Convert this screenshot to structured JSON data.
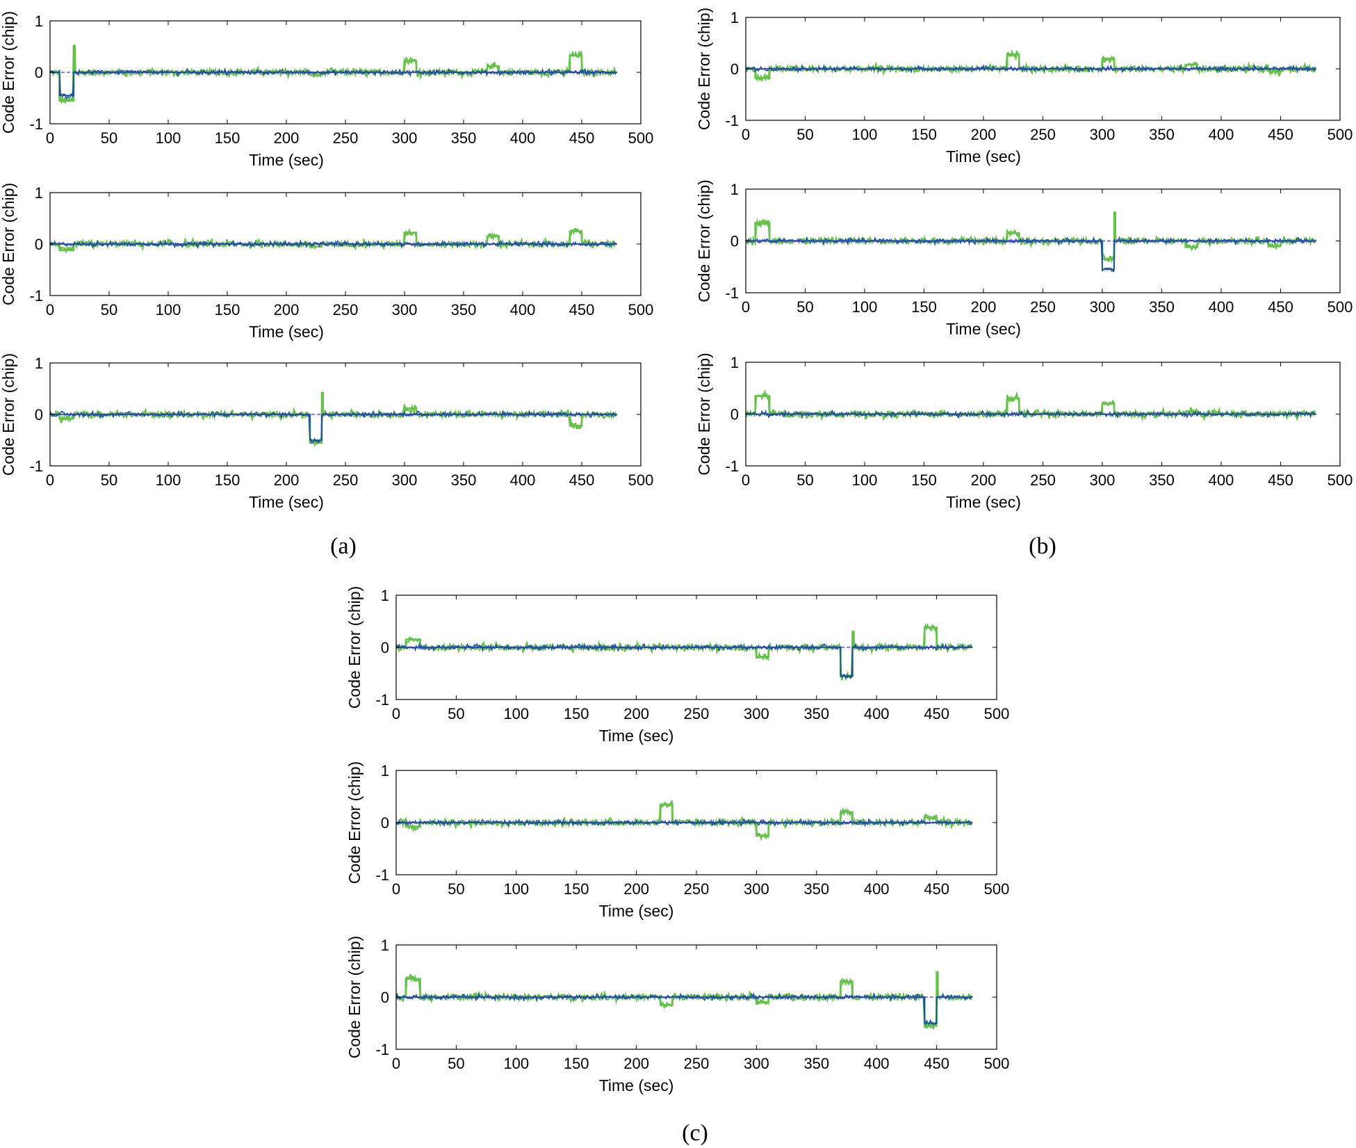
{
  "figure": {
    "captions": [
      "(a)",
      "(b)",
      "(c)"
    ],
    "colors": {
      "series_a": "#65c14a",
      "series_b": "#1e5496",
      "series_ref": "#3a3ad8"
    }
  },
  "chart_data": [
    {
      "panel": "(a)",
      "subplot": 1,
      "type": "line",
      "xlabel": "Time (sec)",
      "ylabel": "Code Error (chip)",
      "xlim": [
        0,
        500
      ],
      "ylim": [
        -1,
        1
      ],
      "xticks": [
        0,
        50,
        100,
        150,
        200,
        250,
        300,
        350,
        400,
        450,
        500
      ],
      "yticks": [
        -1,
        0,
        1
      ],
      "series": [
        {
          "name": "Code error (green)",
          "color": "#65c14a",
          "steps": [
            [
              0,
              0
            ],
            [
              8,
              -0.55
            ],
            [
              20,
              0.5
            ],
            [
              21,
              0
            ],
            [
              220,
              -0.05
            ],
            [
              230,
              0
            ],
            [
              300,
              0.22
            ],
            [
              310,
              0
            ],
            [
              370,
              0.12
            ],
            [
              380,
              0
            ],
            [
              440,
              0.33
            ],
            [
              450,
              0
            ],
            [
              480,
              0
            ]
          ]
        },
        {
          "name": "Code error (blue)",
          "color": "#1e5496",
          "steps": [
            [
              0,
              0
            ],
            [
              8,
              -0.45
            ],
            [
              20,
              0
            ],
            [
              480,
              0
            ]
          ]
        },
        {
          "name": "Zero reference",
          "color": "#3a3ad8",
          "steps": [
            [
              0,
              0
            ],
            [
              480,
              0
            ]
          ]
        }
      ]
    },
    {
      "panel": "(a)",
      "subplot": 2,
      "type": "line",
      "xlabel": "Time (sec)",
      "ylabel": "Code Error (chip)",
      "xlim": [
        0,
        500
      ],
      "ylim": [
        -1,
        1
      ],
      "xticks": [
        0,
        50,
        100,
        150,
        200,
        250,
        300,
        350,
        400,
        450,
        500
      ],
      "yticks": [
        -1,
        0,
        1
      ],
      "series": [
        {
          "name": "Code error (green)",
          "color": "#65c14a",
          "steps": [
            [
              0,
              0
            ],
            [
              8,
              -0.12
            ],
            [
              20,
              0
            ],
            [
              220,
              -0.05
            ],
            [
              230,
              0
            ],
            [
              300,
              0.22
            ],
            [
              310,
              0
            ],
            [
              370,
              0.15
            ],
            [
              380,
              0
            ],
            [
              440,
              0.25
            ],
            [
              450,
              0
            ],
            [
              480,
              0
            ]
          ]
        },
        {
          "name": "Code error (blue)",
          "color": "#1e5496",
          "steps": [
            [
              0,
              0
            ],
            [
              480,
              0
            ]
          ]
        },
        {
          "name": "Zero reference",
          "color": "#3a3ad8",
          "steps": [
            [
              0,
              0
            ],
            [
              480,
              0
            ]
          ]
        }
      ]
    },
    {
      "panel": "(a)",
      "subplot": 3,
      "type": "line",
      "xlabel": "Time (sec)",
      "ylabel": "Code Error (chip)",
      "xlim": [
        0,
        500
      ],
      "ylim": [
        -1,
        1
      ],
      "xticks": [
        0,
        50,
        100,
        150,
        200,
        250,
        300,
        350,
        400,
        450,
        500
      ],
      "yticks": [
        -1,
        0,
        1
      ],
      "series": [
        {
          "name": "Code error (green)",
          "color": "#65c14a",
          "steps": [
            [
              0,
              0
            ],
            [
              8,
              -0.08
            ],
            [
              20,
              0
            ],
            [
              220,
              -0.55
            ],
            [
              230,
              0.42
            ],
            [
              231,
              0
            ],
            [
              300,
              0.12
            ],
            [
              310,
              0
            ],
            [
              440,
              -0.22
            ],
            [
              450,
              0
            ],
            [
              480,
              0
            ]
          ]
        },
        {
          "name": "Code error (blue)",
          "color": "#1e5496",
          "steps": [
            [
              0,
              0
            ],
            [
              220,
              -0.5
            ],
            [
              230,
              0
            ],
            [
              480,
              0
            ]
          ]
        },
        {
          "name": "Zero reference",
          "color": "#3a3ad8",
          "steps": [
            [
              0,
              0
            ],
            [
              480,
              0
            ]
          ]
        }
      ]
    },
    {
      "panel": "(b)",
      "subplot": 1,
      "type": "line",
      "xlabel": "Time (sec)",
      "ylabel": "Code Error (chip)",
      "xlim": [
        0,
        500
      ],
      "ylim": [
        -1,
        1
      ],
      "xticks": [
        0,
        50,
        100,
        150,
        200,
        250,
        300,
        350,
        400,
        450,
        500
      ],
      "yticks": [
        -1,
        0,
        1
      ],
      "series": [
        {
          "name": "Code error (green)",
          "color": "#65c14a",
          "steps": [
            [
              0,
              0
            ],
            [
              8,
              -0.18
            ],
            [
              20,
              0
            ],
            [
              220,
              0.28
            ],
            [
              230,
              0
            ],
            [
              300,
              0.2
            ],
            [
              310,
              0
            ],
            [
              370,
              0.08
            ],
            [
              380,
              0
            ],
            [
              440,
              -0.05
            ],
            [
              450,
              0
            ],
            [
              480,
              0
            ]
          ]
        },
        {
          "name": "Code error (blue)",
          "color": "#1e5496",
          "steps": [
            [
              0,
              0
            ],
            [
              480,
              0
            ]
          ]
        },
        {
          "name": "Zero reference",
          "color": "#3a3ad8",
          "steps": [
            [
              0,
              0
            ],
            [
              480,
              0
            ]
          ]
        }
      ]
    },
    {
      "panel": "(b)",
      "subplot": 2,
      "type": "line",
      "xlabel": "Time (sec)",
      "ylabel": "Code Error (chip)",
      "xlim": [
        0,
        500
      ],
      "ylim": [
        -1,
        1
      ],
      "xticks": [
        0,
        50,
        100,
        150,
        200,
        250,
        300,
        350,
        400,
        450,
        500
      ],
      "yticks": [
        -1,
        0,
        1
      ],
      "series": [
        {
          "name": "Code error (green)",
          "color": "#65c14a",
          "steps": [
            [
              0,
              0
            ],
            [
              8,
              0.35
            ],
            [
              20,
              0
            ],
            [
              220,
              0.15
            ],
            [
              230,
              0
            ],
            [
              300,
              -0.35
            ],
            [
              310,
              0.55
            ],
            [
              311,
              0
            ],
            [
              370,
              -0.12
            ],
            [
              380,
              0
            ],
            [
              440,
              -0.1
            ],
            [
              450,
              0
            ],
            [
              480,
              0
            ]
          ]
        },
        {
          "name": "Code error (blue)",
          "color": "#1e5496",
          "steps": [
            [
              0,
              0
            ],
            [
              300,
              -0.55
            ],
            [
              310,
              0
            ],
            [
              480,
              0
            ]
          ]
        },
        {
          "name": "Zero reference",
          "color": "#3a3ad8",
          "steps": [
            [
              0,
              0
            ],
            [
              480,
              0
            ]
          ]
        }
      ]
    },
    {
      "panel": "(b)",
      "subplot": 3,
      "type": "line",
      "xlabel": "Time (sec)",
      "ylabel": "Code Error (chip)",
      "xlim": [
        0,
        500
      ],
      "ylim": [
        -1,
        1
      ],
      "xticks": [
        0,
        50,
        100,
        150,
        200,
        250,
        300,
        350,
        400,
        450,
        500
      ],
      "yticks": [
        -1,
        0,
        1
      ],
      "series": [
        {
          "name": "Code error (green)",
          "color": "#65c14a",
          "steps": [
            [
              0,
              0
            ],
            [
              8,
              0.35
            ],
            [
              20,
              0
            ],
            [
              220,
              0.3
            ],
            [
              230,
              0
            ],
            [
              300,
              0.2
            ],
            [
              310,
              0
            ],
            [
              370,
              0.05
            ],
            [
              380,
              0
            ],
            [
              480,
              0
            ]
          ]
        },
        {
          "name": "Code error (blue)",
          "color": "#1e5496",
          "steps": [
            [
              0,
              0
            ],
            [
              480,
              0
            ]
          ]
        },
        {
          "name": "Zero reference",
          "color": "#3a3ad8",
          "steps": [
            [
              0,
              0
            ],
            [
              480,
              0
            ]
          ]
        }
      ]
    },
    {
      "panel": "(c)",
      "subplot": 1,
      "type": "line",
      "xlabel": "Time (sec)",
      "ylabel": "Code Error (chip)",
      "xlim": [
        0,
        500
      ],
      "ylim": [
        -1,
        1
      ],
      "xticks": [
        0,
        50,
        100,
        150,
        200,
        250,
        300,
        350,
        400,
        450,
        500
      ],
      "yticks": [
        -1,
        0,
        1
      ],
      "series": [
        {
          "name": "Code error (green)",
          "color": "#65c14a",
          "steps": [
            [
              0,
              0
            ],
            [
              8,
              0.15
            ],
            [
              20,
              0
            ],
            [
              300,
              -0.18
            ],
            [
              310,
              0
            ],
            [
              370,
              -0.55
            ],
            [
              380,
              0.3
            ],
            [
              381,
              0
            ],
            [
              440,
              0.38
            ],
            [
              450,
              0
            ],
            [
              480,
              0
            ]
          ]
        },
        {
          "name": "Code error (blue)",
          "color": "#1e5496",
          "steps": [
            [
              0,
              0
            ],
            [
              370,
              -0.55
            ],
            [
              380,
              0
            ],
            [
              480,
              0
            ]
          ]
        },
        {
          "name": "Zero reference",
          "color": "#3a3ad8",
          "steps": [
            [
              0,
              0
            ],
            [
              480,
              0
            ]
          ]
        }
      ]
    },
    {
      "panel": "(c)",
      "subplot": 2,
      "type": "line",
      "xlabel": "Time (sec)",
      "ylabel": "Code Error (chip)",
      "xlim": [
        0,
        500
      ],
      "ylim": [
        -1,
        1
      ],
      "xticks": [
        0,
        50,
        100,
        150,
        200,
        250,
        300,
        350,
        400,
        450,
        500
      ],
      "yticks": [
        -1,
        0,
        1
      ],
      "series": [
        {
          "name": "Code error (green)",
          "color": "#65c14a",
          "steps": [
            [
              0,
              0
            ],
            [
              8,
              -0.08
            ],
            [
              20,
              0
            ],
            [
              220,
              0.35
            ],
            [
              230,
              0
            ],
            [
              300,
              -0.25
            ],
            [
              310,
              0
            ],
            [
              370,
              0.2
            ],
            [
              380,
              0
            ],
            [
              440,
              0.1
            ],
            [
              450,
              0
            ],
            [
              480,
              0
            ]
          ]
        },
        {
          "name": "Code error (blue)",
          "color": "#1e5496",
          "steps": [
            [
              0,
              0
            ],
            [
              480,
              0
            ]
          ]
        },
        {
          "name": "Zero reference",
          "color": "#3a3ad8",
          "steps": [
            [
              0,
              0
            ],
            [
              480,
              0
            ]
          ]
        }
      ]
    },
    {
      "panel": "(c)",
      "subplot": 3,
      "type": "line",
      "xlabel": "Time (sec)",
      "ylabel": "Code Error (chip)",
      "xlim": [
        0,
        500
      ],
      "ylim": [
        -1,
        1
      ],
      "xticks": [
        0,
        50,
        100,
        150,
        200,
        250,
        300,
        350,
        400,
        450,
        500
      ],
      "yticks": [
        -1,
        0,
        1
      ],
      "series": [
        {
          "name": "Code error (green)",
          "color": "#65c14a",
          "steps": [
            [
              0,
              0
            ],
            [
              8,
              0.35
            ],
            [
              20,
              0
            ],
            [
              220,
              -0.15
            ],
            [
              230,
              0
            ],
            [
              300,
              -0.1
            ],
            [
              310,
              0
            ],
            [
              370,
              0.3
            ],
            [
              380,
              0
            ],
            [
              440,
              -0.55
            ],
            [
              450,
              0.48
            ],
            [
              451,
              0
            ],
            [
              480,
              0
            ]
          ]
        },
        {
          "name": "Code error (blue)",
          "color": "#1e5496",
          "steps": [
            [
              0,
              0
            ],
            [
              440,
              -0.5
            ],
            [
              450,
              0
            ],
            [
              480,
              0
            ]
          ]
        },
        {
          "name": "Zero reference",
          "color": "#3a3ad8",
          "steps": [
            [
              0,
              0
            ],
            [
              480,
              0
            ]
          ]
        }
      ]
    }
  ]
}
